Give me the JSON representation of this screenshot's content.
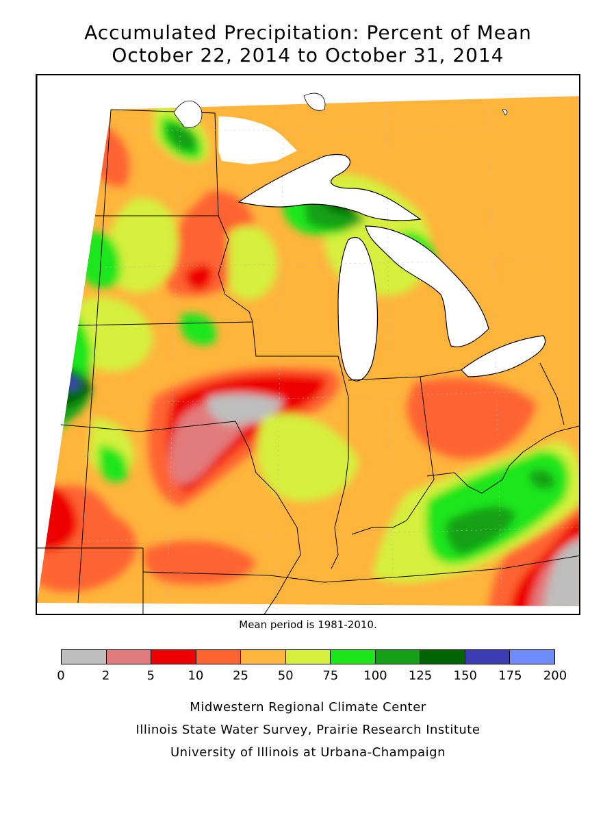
{
  "title": {
    "line1": "Accumulated Precipitation: Percent of Mean",
    "line2": "October 22, 2014 to October 31, 2014"
  },
  "mean_period": "Mean period is 1981-2010.",
  "legend": {
    "bins": [
      {
        "from": 0,
        "to": 2,
        "color": "#bebebe"
      },
      {
        "from": 2,
        "to": 5,
        "color": "#e27b7b"
      },
      {
        "from": 5,
        "to": 10,
        "color": "#ee0000"
      },
      {
        "from": 10,
        "to": 25,
        "color": "#ff6430"
      },
      {
        "from": 25,
        "to": 50,
        "color": "#ffb43c"
      },
      {
        "from": 50,
        "to": 75,
        "color": "#d6f03c"
      },
      {
        "from": 75,
        "to": 100,
        "color": "#1ae61a"
      },
      {
        "from": 100,
        "to": 125,
        "color": "#14a014"
      },
      {
        "from": 125,
        "to": 150,
        "color": "#006400"
      },
      {
        "from": 150,
        "to": 175,
        "color": "#3c3cb4"
      },
      {
        "from": 175,
        "to": 200,
        "color": "#6e8cff"
      }
    ],
    "tick_labels": [
      "0",
      "2",
      "5",
      "10",
      "25",
      "50",
      "75",
      "100",
      "125",
      "150",
      "175",
      "200"
    ]
  },
  "credits": [
    "Midwestern Regional Climate Center",
    "Illinois State Water Survey, Prairie Research Institute",
    "University of Illinois at Urbana-Champaign"
  ]
}
